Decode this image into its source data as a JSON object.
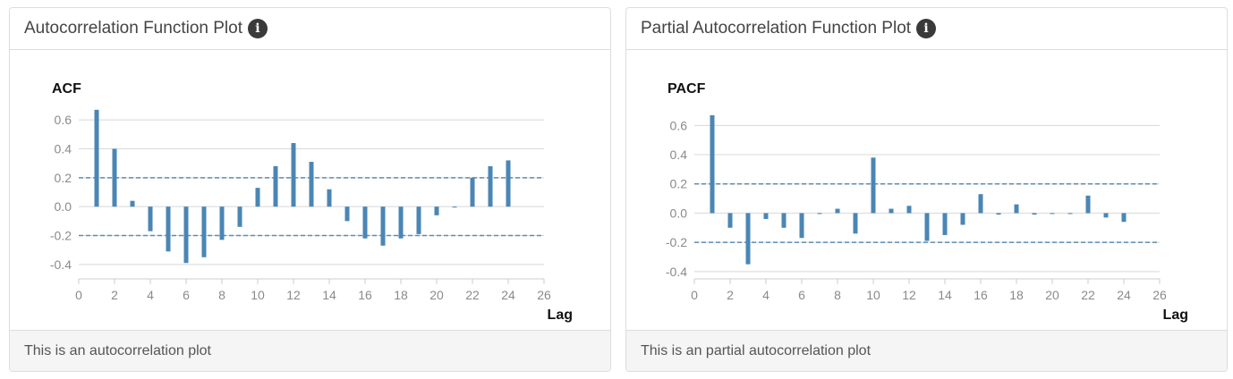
{
  "acf_panel": {
    "header_title": "Autocorrelation Function Plot",
    "footer_text": "This is an autocorrelation plot"
  },
  "pacf_panel": {
    "header_title": "Partial Autocorrelation Function Plot",
    "footer_text": "This is an partial autocorrelation plot"
  },
  "icons": {
    "info": "info-icon"
  },
  "colors": {
    "bar": "#4a86b4",
    "grid": "#d8d8d8",
    "conf": "#5b8db3"
  },
  "chart_data": [
    {
      "type": "bar",
      "title": "ACF",
      "xlabel": "Lag",
      "ylabel": "",
      "xlim": [
        0,
        26
      ],
      "ylim": [
        -0.5,
        0.7
      ],
      "xticks": [
        "0",
        "2",
        "4",
        "6",
        "8",
        "10",
        "12",
        "14",
        "16",
        "18",
        "20",
        "22",
        "24",
        "26"
      ],
      "yticks": [
        "0.6",
        "0.4",
        "0.2",
        "0.0",
        "-0.2",
        "-0.4"
      ],
      "confidence_bounds": [
        0.2,
        -0.2
      ],
      "lags": [
        1,
        2,
        3,
        4,
        5,
        6,
        7,
        8,
        9,
        10,
        11,
        12,
        13,
        14,
        15,
        16,
        17,
        18,
        19,
        20,
        21,
        22,
        23,
        24
      ],
      "values": [
        0.67,
        0.4,
        0.04,
        -0.17,
        -0.31,
        -0.39,
        -0.35,
        -0.23,
        -0.14,
        0.13,
        0.28,
        0.44,
        0.31,
        0.12,
        -0.1,
        -0.22,
        -0.27,
        -0.22,
        -0.19,
        -0.06,
        0.0,
        0.2,
        0.28,
        0.32
      ]
    },
    {
      "type": "bar",
      "title": "PACF",
      "xlabel": "Lag",
      "ylabel": "",
      "xlim": [
        0,
        26
      ],
      "ylim": [
        -0.45,
        0.7
      ],
      "xticks": [
        "0",
        "2",
        "4",
        "6",
        "8",
        "10",
        "12",
        "14",
        "16",
        "18",
        "20",
        "22",
        "24",
        "26"
      ],
      "yticks": [
        "0.6",
        "0.4",
        "0.2",
        "0.0",
        "-0.2",
        "-0.4"
      ],
      "confidence_bounds": [
        0.2,
        -0.2
      ],
      "lags": [
        1,
        2,
        3,
        4,
        5,
        6,
        7,
        8,
        9,
        10,
        11,
        12,
        13,
        14,
        15,
        16,
        17,
        18,
        19,
        20,
        21,
        22,
        23,
        24
      ],
      "values": [
        0.67,
        -0.1,
        -0.35,
        -0.04,
        -0.1,
        -0.17,
        0.0,
        0.03,
        -0.14,
        0.38,
        0.03,
        0.05,
        -0.19,
        -0.15,
        -0.08,
        0.13,
        -0.01,
        0.06,
        -0.01,
        0.0,
        0.0,
        0.12,
        -0.03,
        -0.06
      ]
    }
  ]
}
